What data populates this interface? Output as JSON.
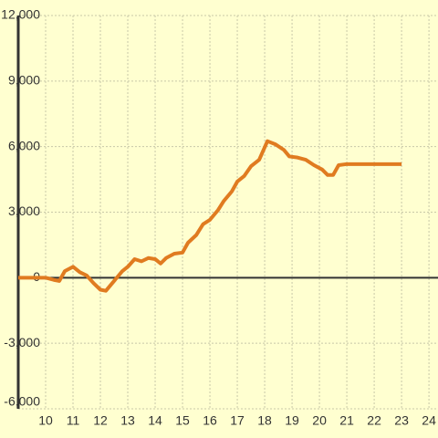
{
  "chart_data": {
    "type": "line",
    "x": [
      9,
      10,
      10.3,
      10.5,
      10.7,
      11,
      11.25,
      11.5,
      11.75,
      12,
      12.2,
      12.5,
      12.8,
      13,
      13.25,
      13.5,
      13.75,
      14,
      14.2,
      14.4,
      14.7,
      15,
      15.2,
      15.5,
      15.75,
      16,
      16.3,
      16.5,
      16.8,
      17,
      17.25,
      17.5,
      17.8,
      18.1,
      18.4,
      18.7,
      18.9,
      19.2,
      19.5,
      19.8,
      20.1,
      20.3,
      20.5,
      20.7,
      21,
      23
    ],
    "series": [
      {
        "color": "#e07b20",
        "values": [
          0,
          0,
          -100,
          -150,
          300,
          500,
          250,
          100,
          -250,
          -550,
          -600,
          -150,
          300,
          500,
          850,
          750,
          900,
          850,
          650,
          900,
          1100,
          1150,
          1600,
          1950,
          2450,
          2650,
          3100,
          3500,
          3950,
          4400,
          4650,
          5100,
          5400,
          6250,
          6100,
          5850,
          5550,
          5500,
          5400,
          5150,
          4950,
          4700,
          4700,
          5150,
          5200,
          5200
        ]
      }
    ],
    "xlim": [
      9,
      24.33
    ],
    "xticks": [
      10,
      11,
      12,
      13,
      14,
      15,
      16,
      17,
      18,
      19,
      20,
      21,
      22,
      23,
      24
    ],
    "ylim": [
      -6000,
      12000
    ],
    "yticks": [
      {
        "value": -6000,
        "label": "-6,000"
      },
      {
        "value": -3000,
        "label": "-3,000"
      },
      0,
      {
        "value": 3000,
        "label": "3,000"
      },
      {
        "value": 6000,
        "label": "6,000"
      },
      {
        "value": 9000,
        "label": "9,000"
      },
      {
        "value": 12000,
        "label": "12,000"
      }
    ],
    "grid": true
  }
}
